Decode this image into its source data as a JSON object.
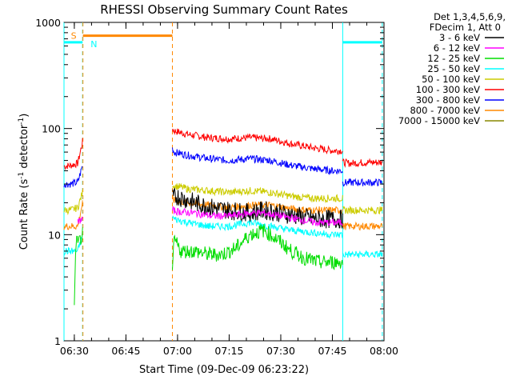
{
  "chart_data": {
    "type": "line",
    "title": "RHESSI Observing Summary Count Rates",
    "xlabel": "Start Time (09-Dec-09 06:23:22)",
    "ylabel_main": "Count Rate (s",
    "ylabel_sup1": "-1",
    "ylabel_mid": " detector",
    "ylabel_sup2": "-1",
    "ylabel_end": ")",
    "y_scale": "log",
    "ylim": [
      1,
      1000
    ],
    "xlim_minutes": [
      -28,
      65
    ],
    "x_ticks": [
      {
        "label": "06:30",
        "t": -25
      },
      {
        "label": "06:45",
        "t": -10
      },
      {
        "label": "07:00",
        "t": 5
      },
      {
        "label": "07:15",
        "t": 20
      },
      {
        "label": "07:30",
        "t": 35
      },
      {
        "label": "07:45",
        "t": 50
      },
      {
        "label": "08:00",
        "t": 65
      }
    ],
    "y_ticks": [
      {
        "label": "1",
        "v": 1
      },
      {
        "label": "10",
        "v": 10
      },
      {
        "label": "100",
        "v": 100
      },
      {
        "label": "1000",
        "v": 1000
      }
    ],
    "legend": {
      "placement": "right",
      "header": [
        "Det 1,3,4,5,6,9,",
        "FDecim 1, Att 0"
      ],
      "entries": [
        {
          "label": "3 - 6 keV",
          "color": "#000000"
        },
        {
          "label": "6 - 12 keV",
          "color": "#ff00ff"
        },
        {
          "label": "12 - 25 keV",
          "color": "#00dd00"
        },
        {
          "label": "25 - 50 keV",
          "color": "#00ffff"
        },
        {
          "label": "50 - 100 keV",
          "color": "#cccc00"
        },
        {
          "label": "100 - 300 keV",
          "color": "#ff0000"
        },
        {
          "label": "300 - 800 keV",
          "color": "#0000ff"
        },
        {
          "label": "800 - 7000 keV",
          "color": "#ff8800"
        },
        {
          "label": "7000 - 15000 keV",
          "color": "#888800"
        }
      ]
    },
    "markers": [
      {
        "label": "S",
        "color": "#ff8800",
        "start_t": -22.5,
        "end_t": 3.5,
        "level": 750
      },
      {
        "label": "N",
        "color": "#00ffff",
        "level": 650,
        "segments": [
          [
            -28,
            -22.6
          ],
          [
            53,
            64.5
          ]
        ]
      }
    ],
    "night_lines_t": [
      -28,
      -22.6,
      53,
      64.5
    ],
    "saa_lines_t": [
      -22.5,
      3.5
    ],
    "series": [
      {
        "name": "100 - 300 keV",
        "color": "#ff0000",
        "segments": [
          {
            "t": [
              -28,
              -26,
              -24,
              -22.6
            ],
            "v": [
              44,
              45,
              47,
              75
            ]
          },
          {
            "t": [
              3.5,
              4,
              8,
              14,
              20,
              26,
              32,
              38,
              44,
              50,
              53
            ],
            "v": [
              100,
              95,
              88,
              82,
              80,
              82,
              80,
              72,
              66,
              62,
              62
            ]
          },
          {
            "t": [
              53,
              55,
              60,
              64.5
            ],
            "v": [
              48,
              47,
              48,
              48
            ]
          }
        ]
      },
      {
        "name": "300 - 800 keV",
        "color": "#0000ff",
        "segments": [
          {
            "t": [
              -28,
              -26,
              -24,
              -22.6
            ],
            "v": [
              30,
              30,
              31,
              45
            ]
          },
          {
            "t": [
              3.5,
              4,
              8,
              14,
              20,
              26,
              32,
              38,
              44,
              50,
              53
            ],
            "v": [
              65,
              60,
              56,
              52,
              50,
              52,
              50,
              45,
              42,
              40,
              40
            ]
          },
          {
            "t": [
              53,
              55,
              60,
              64.5
            ],
            "v": [
              31,
              31,
              31,
              31
            ]
          }
        ]
      },
      {
        "name": "50 - 100 keV",
        "color": "#cccc00",
        "segments": [
          {
            "t": [
              -28,
              -26,
              -24,
              -22.6
            ],
            "v": [
              17,
              17,
              18,
              25
            ]
          },
          {
            "t": [
              3.5,
              4,
              8,
              14,
              20,
              26,
              32,
              38,
              44,
              50,
              53
            ],
            "v": [
              30,
              29,
              27,
              26,
              25,
              26,
              25,
              23,
              22,
              22,
              22
            ]
          },
          {
            "t": [
              53,
              55,
              60,
              64.5
            ],
            "v": [
              17,
              17,
              17,
              17
            ]
          }
        ]
      },
      {
        "name": "800 - 7000 keV",
        "color": "#ff8800",
        "segments": [
          {
            "t": [
              -28,
              -26,
              -24,
              -22.6
            ],
            "v": [
              12,
              12,
              12,
              20
            ]
          },
          {
            "t": [
              3.5,
              4,
              8,
              14,
              20,
              26,
              32,
              38,
              44,
              50,
              53
            ],
            "v": [
              22,
              21,
              20,
              19,
              18,
              19,
              19,
              17.5,
              17,
              17,
              17
            ]
          },
          {
            "t": [
              53,
              55,
              60,
              64.5
            ],
            "v": [
              12,
              12,
              12,
              12
            ]
          }
        ]
      },
      {
        "name": "3 - 6 keV",
        "color": "#000000",
        "segments": [
          {
            "t": [
              3.5,
              5,
              10,
              15,
              20,
              26,
              30,
              35,
              40,
              45,
              50,
              53
            ],
            "v": [
              22,
              23,
              20,
              18,
              17,
              16,
              17,
              16,
              15,
              14,
              14,
              14
            ]
          }
        ]
      },
      {
        "name": "6 - 12 keV",
        "color": "#ff00ff",
        "segments": [
          {
            "t": [
              -24,
              -23,
              -22.6
            ],
            "v": [
              13,
              14,
              14
            ]
          },
          {
            "t": [
              3.5,
              5,
              10,
              15,
              20,
              26,
              30,
              35,
              40,
              45,
              50,
              53
            ],
            "v": [
              17,
              16.5,
              16,
              15,
              15,
              16,
              16,
              15,
              14,
              13,
              13,
              13
            ]
          }
        ]
      },
      {
        "name": "25 - 50 keV",
        "color": "#00ffff",
        "segments": [
          {
            "t": [
              -28,
              -26,
              -24,
              -22.6
            ],
            "v": [
              7,
              7,
              7,
              10
            ]
          },
          {
            "t": [
              3.5,
              4,
              8,
              14,
              20,
              26,
              32,
              38,
              44,
              50,
              53
            ],
            "v": [
              15,
              14,
              13,
              12,
              12,
              13,
              12,
              11,
              10.5,
              10,
              10
            ]
          },
          {
            "t": [
              53,
              55,
              60,
              64.5
            ],
            "v": [
              6.5,
              6.5,
              6.5,
              6.5
            ]
          }
        ]
      },
      {
        "name": "12 - 25 keV",
        "color": "#00dd00",
        "segments": [
          {
            "t": [
              -25,
              -24.5,
              -24,
              -22.6
            ],
            "v": [
              2,
              9,
              8,
              10
            ]
          },
          {
            "t": [
              3.5,
              4,
              6,
              10,
              14,
              18,
              22,
              26,
              30,
              34,
              38,
              42,
              46,
              50,
              53
            ],
            "v": [
              4,
              9,
              7,
              7,
              6.5,
              6.5,
              7.5,
              10,
              11,
              9,
              7,
              6,
              5.5,
              5.5,
              5.5
            ]
          }
        ]
      }
    ]
  }
}
